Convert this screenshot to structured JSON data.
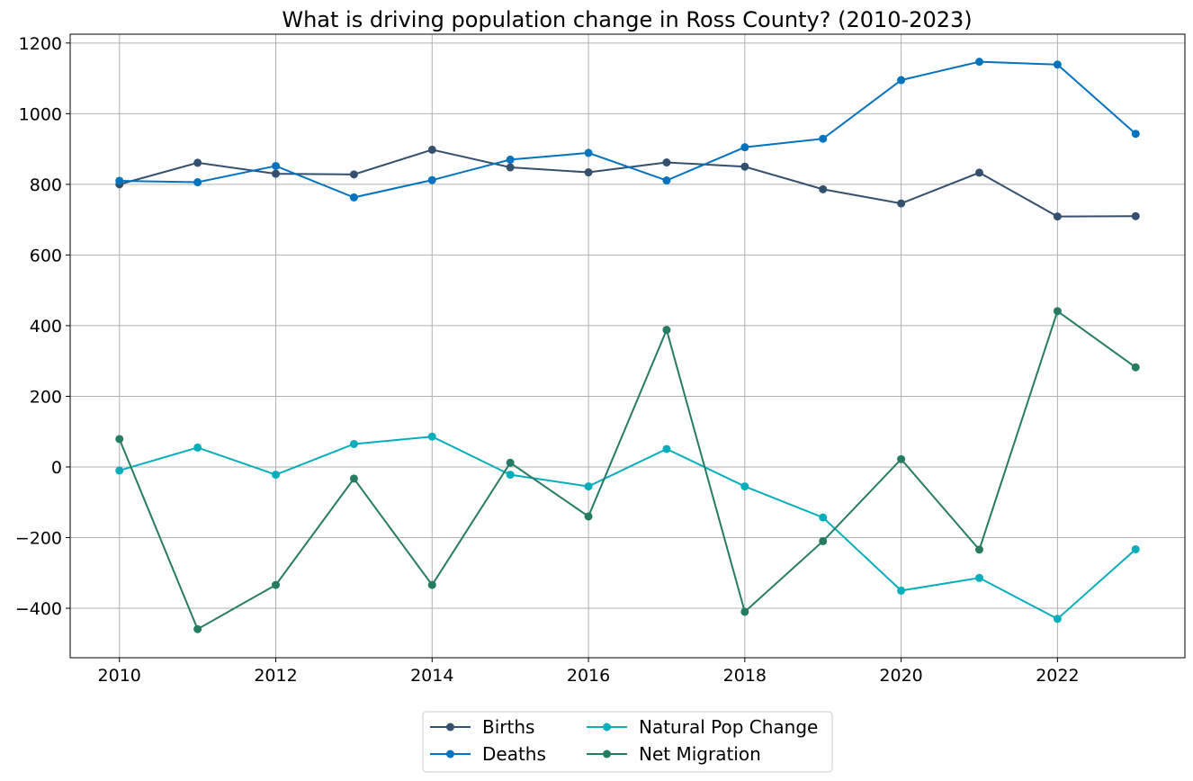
{
  "chart_data": {
    "type": "line",
    "title": "What is driving population change in Ross County? (2010-2023)",
    "xlabel": "",
    "ylabel": "",
    "x": [
      2010,
      2011,
      2012,
      2013,
      2014,
      2015,
      2016,
      2017,
      2018,
      2019,
      2020,
      2021,
      2022,
      2023
    ],
    "xlim": [
      2009.37,
      2023.63
    ],
    "ylim": [
      -540,
      1225
    ],
    "x_ticks": [
      2010,
      2012,
      2014,
      2016,
      2018,
      2020,
      2022
    ],
    "y_ticks": [
      -400,
      -200,
      0,
      200,
      400,
      600,
      800,
      1000,
      1200
    ],
    "grid": true,
    "legend": {
      "position": "bottom-center",
      "columns": 2
    },
    "series": [
      {
        "name": "Births",
        "color": "#34506e",
        "values": [
          800,
          861,
          830,
          828,
          898,
          848,
          834,
          862,
          850,
          786,
          746,
          833,
          709,
          710
        ]
      },
      {
        "name": "Deaths",
        "color": "#0273be",
        "values": [
          810,
          806,
          852,
          763,
          812,
          870,
          889,
          811,
          905,
          929,
          1095,
          1147,
          1139,
          943
        ]
      },
      {
        "name": "Natural Pop Change",
        "color": "#06aebc",
        "values": [
          -10,
          55,
          -22,
          65,
          86,
          -22,
          -55,
          51,
          -55,
          -143,
          -350,
          -314,
          -430,
          -233
        ]
      },
      {
        "name": "Net Migration",
        "color": "#267c62",
        "values": [
          79,
          -459,
          -334,
          -33,
          -334,
          12,
          -140,
          388,
          -410,
          -210,
          22,
          -234,
          441,
          282
        ]
      }
    ]
  }
}
